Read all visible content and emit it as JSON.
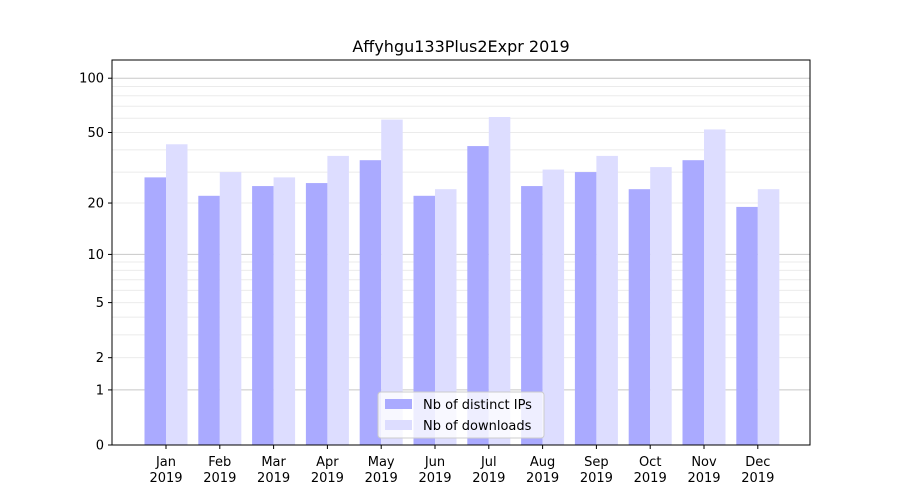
{
  "chart_data": {
    "type": "bar",
    "title": "Affyhgu133Plus2Expr 2019",
    "xlabel": "",
    "ylabel": "",
    "yscale": "log(1+y)",
    "ylim": [
      0,
      120
    ],
    "yticks": [
      0,
      1,
      2,
      5,
      10,
      20,
      50,
      100
    ],
    "grid": true,
    "legend_position": "bottom-center",
    "categories": [
      "Jan\n2019",
      "Feb\n2019",
      "Mar\n2019",
      "Apr\n2019",
      "May\n2019",
      "Jun\n2019",
      "Jul\n2019",
      "Aug\n2019",
      "Sep\n2019",
      "Oct\n2019",
      "Nov\n2019",
      "Dec\n2019"
    ],
    "series": [
      {
        "name": "Nb of distinct IPs",
        "color": "#aaaaff",
        "values": [
          28,
          22,
          25,
          26,
          35,
          22,
          42,
          25,
          30,
          24,
          35,
          19
        ]
      },
      {
        "name": "Nb of downloads",
        "color": "#ddddff",
        "values": [
          43,
          30,
          28,
          37,
          59,
          24,
          61,
          31,
          37,
          32,
          52,
          24
        ]
      }
    ]
  }
}
